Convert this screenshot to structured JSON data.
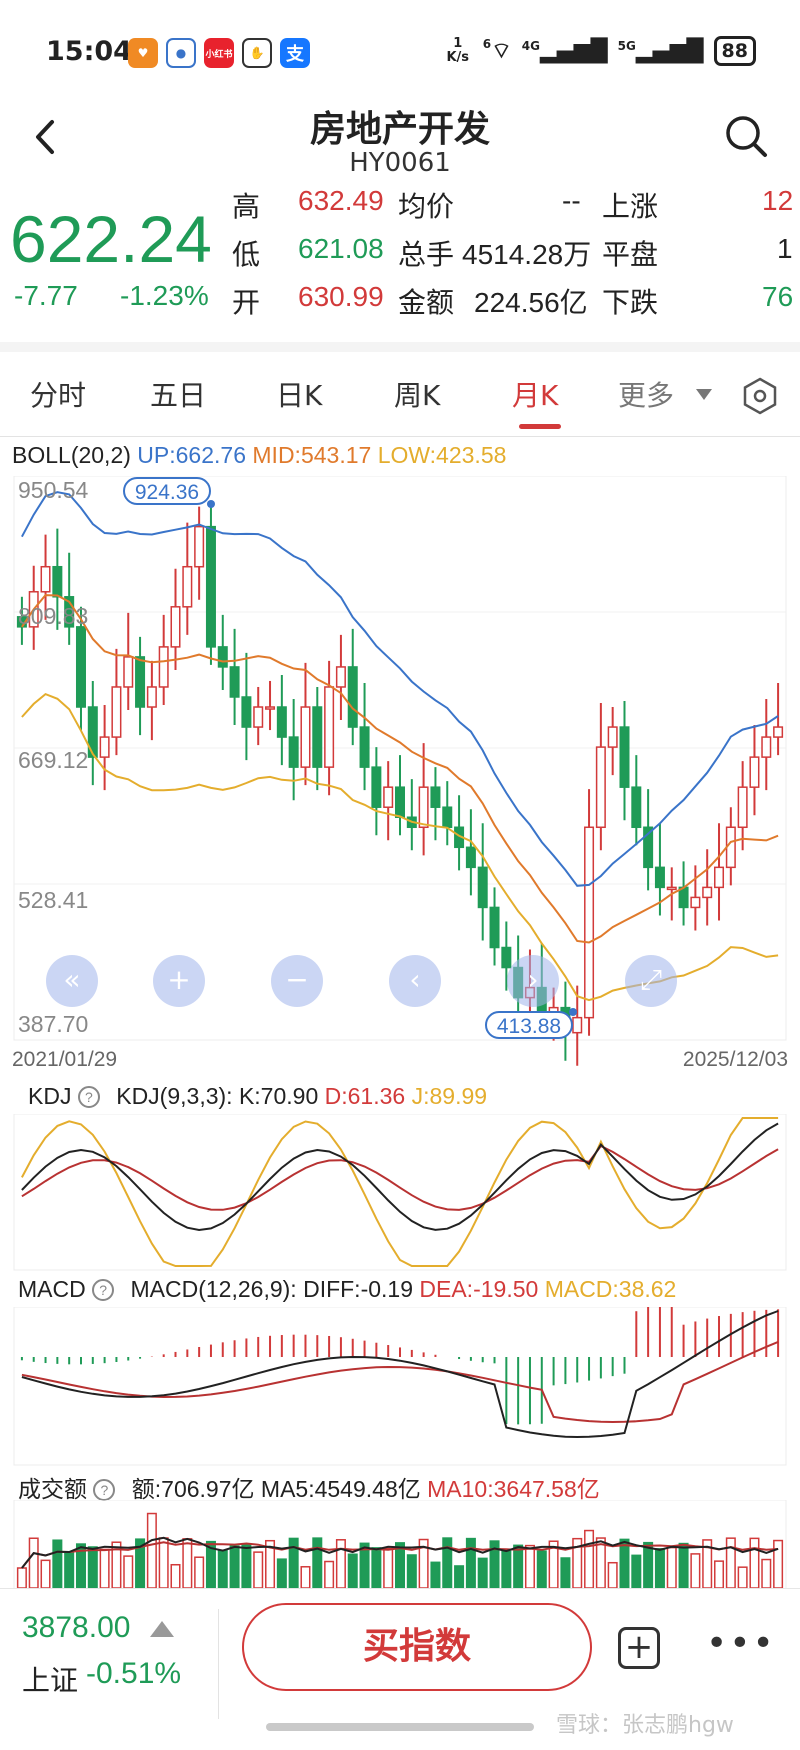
{
  "status_bar": {
    "time": "15:04",
    "net_speed": "1 K/s",
    "wifi_label": "6",
    "signal1": "4G",
    "signal2": "5G",
    "battery": "88",
    "app_icons": [
      {
        "name": "heart-app-icon",
        "color": "#f08a24",
        "text": ""
      },
      {
        "name": "baidu-app-icon",
        "color": "#ffffff",
        "text": ""
      },
      {
        "name": "xiaohongshu-app-icon",
        "color": "#e8222d",
        "text": "小红书"
      },
      {
        "name": "hand-app-icon",
        "color": "#ffffff",
        "text": ""
      },
      {
        "name": "alipay-app-icon",
        "color": "#1677ff",
        "text": "支"
      }
    ]
  },
  "header": {
    "title": "房地产开发",
    "code": "HY0061"
  },
  "quote": {
    "price": "622.24",
    "change": "-7.77",
    "change_pct": "-1.23%",
    "high_label": "高",
    "high": "632.49",
    "low_label": "低",
    "low": "621.08",
    "open_label": "开",
    "open": "630.99",
    "avg_label": "均价",
    "avg": "--",
    "volume_label": "总手",
    "volume": "4514.28万",
    "amount_label": "金额",
    "amount": "224.56亿",
    "up_label": "上涨",
    "up": "12",
    "flat_label": "平盘",
    "flat": "1",
    "down_label": "下跌",
    "down": "76"
  },
  "tabs": [
    {
      "label": "分时",
      "active": false
    },
    {
      "label": "五日",
      "active": false
    },
    {
      "label": "日K",
      "active": false
    },
    {
      "label": "周K",
      "active": false
    },
    {
      "label": "月K",
      "active": true
    },
    {
      "label": "更多",
      "active": false
    }
  ],
  "boll": {
    "name": "BOLL(20,2)",
    "up": "UP:662.76",
    "mid": "MID:543.17",
    "low": "LOW:423.58"
  },
  "kline": {
    "y_ticks": [
      "950.54",
      "809.83",
      "669.12",
      "528.41",
      "387.70"
    ],
    "max_label": "924.36",
    "min_label": "413.88",
    "start_date": "2021/01/29",
    "end_date": "2025/12/03"
  },
  "kdj": {
    "name": "KDJ",
    "params": "KDJ(9,3,3):",
    "k": "K:70.90",
    "d": "D:61.36",
    "j": "J:89.99"
  },
  "macd": {
    "name": "MACD",
    "params": "MACD(12,26,9):",
    "diff": "DIFF:-0.19",
    "dea": "DEA:-19.50",
    "macd": "MACD:38.62"
  },
  "turnover": {
    "name": "成交额",
    "amount": "额:706.97亿",
    "ma5": "MA5:4549.48亿",
    "ma10": "MA10:3647.58亿"
  },
  "controls": [
    "«",
    "+",
    "−",
    "‹",
    "›",
    "⤢"
  ],
  "bottom": {
    "index_value": "3878.00",
    "index_name": "上证",
    "index_pct": "-0.51%",
    "buy_label": "买指数",
    "watermark": "雪球：张志鹏hgw"
  },
  "colors": {
    "up": "#d23a3a",
    "down": "#1f9b57",
    "boll_up": "#3a74c9",
    "boll_mid": "#e07a2c",
    "boll_low": "#e4ad2d"
  }
}
